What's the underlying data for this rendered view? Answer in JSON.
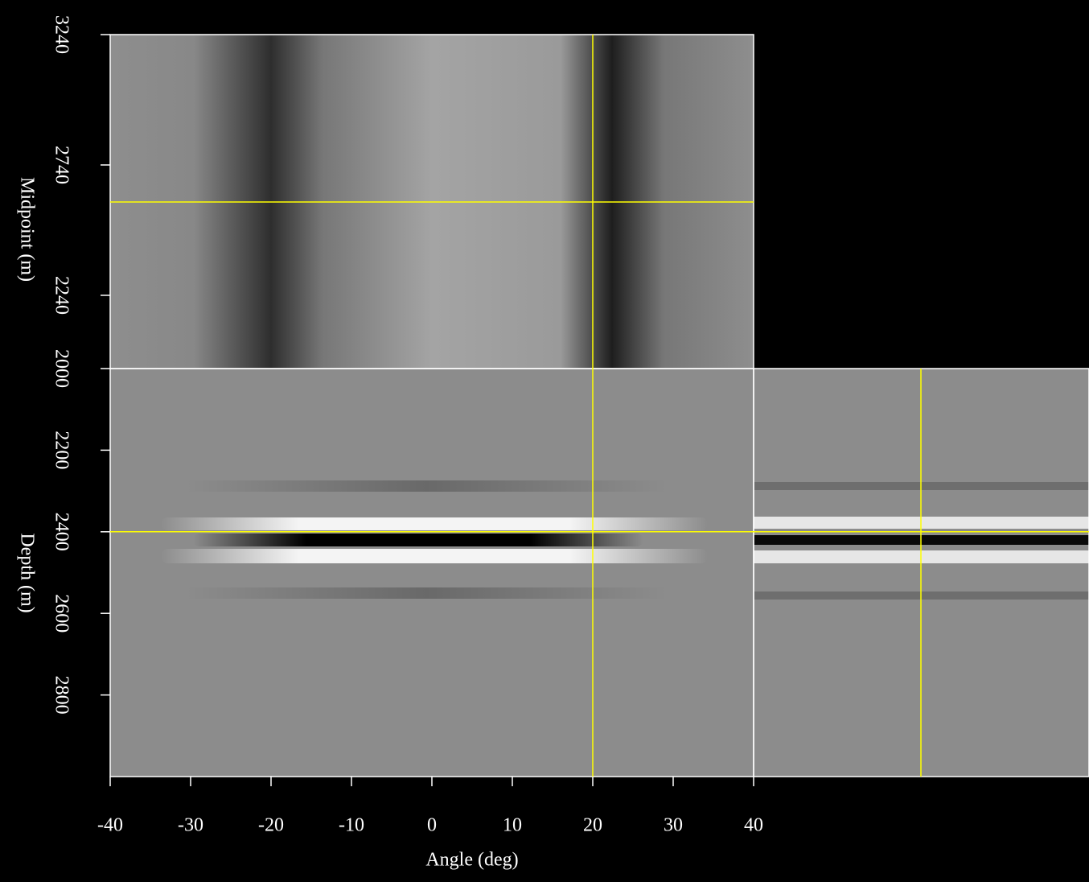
{
  "chart_data": [
    {
      "type": "image",
      "ylabel": "Midpoint (m)",
      "ylim": [
        1959,
        3240
      ],
      "yticks": [
        3240,
        2740,
        2240
      ],
      "cursor_x": 20,
      "cursor_y": 2598
    },
    {
      "type": "image",
      "xlabel": "Angle (deg)",
      "xlim": [
        -40,
        40
      ],
      "xticks": [
        -40,
        -30,
        -20,
        -10,
        0,
        10,
        20,
        30,
        40
      ],
      "ylabel": "Depth (m)",
      "ylim": [
        3000,
        2000
      ],
      "yticks": [
        2000,
        2200,
        2400,
        2600,
        2800
      ],
      "cursor_y": 2400
    }
  ]
}
